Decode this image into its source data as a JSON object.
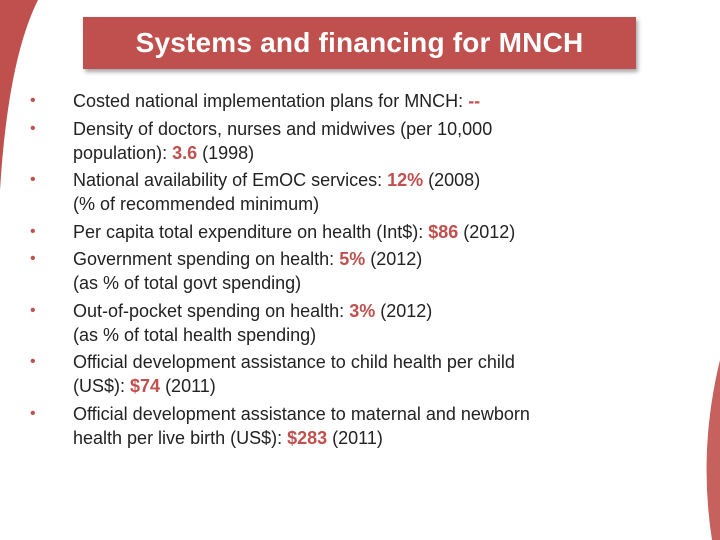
{
  "title": "Systems and financing for MNCH",
  "colors": {
    "accent": "#c0504d",
    "text": "#222222"
  },
  "items": [
    {
      "pre": "Costed national implementation plans for MNCH: ",
      "value": "--",
      "post": "",
      "line2": ""
    },
    {
      "pre": "Density of doctors, nurses and midwives (per 10,000",
      "line2pre": "population): ",
      "value": "3.6",
      "post": " (1998)"
    },
    {
      "pre": "National availability of EmOC services: ",
      "value": "12%",
      "post": " (2008)",
      "line2": "(% of recommended minimum)"
    },
    {
      "pre": "Per capita total expenditure on health (Int$): ",
      "value": "$86",
      "post": " (2012)",
      "line2": ""
    },
    {
      "pre": "Government spending on health: ",
      "value": "5%",
      "post": " (2012)",
      "line2": "(as % of total govt spending)"
    },
    {
      "pre": "Out-of-pocket spending on health: ",
      "value": "3%",
      "post": " (2012)",
      "line2": "(as % of total health spending)"
    },
    {
      "pre": "Official development assistance to child health per child",
      "line2pre": "(US$): ",
      "value": "$74",
      "post": " (2011)"
    },
    {
      "pre": "Official development assistance to maternal and newborn",
      "line2pre": "health per live birth (US$): ",
      "value": "$283",
      "post": " (2011)"
    }
  ]
}
